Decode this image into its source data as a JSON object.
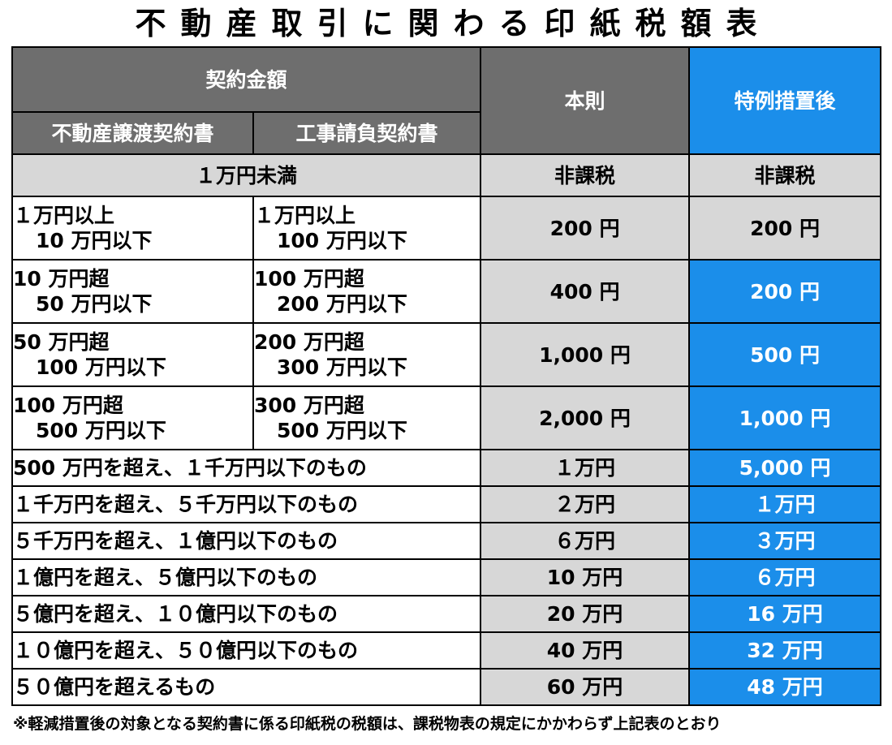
{
  "title": "不動産取引に関わる印紙税額表",
  "header": {
    "contract_amount": "契約金額",
    "real_estate_transfer": "不動産譲渡契約書",
    "construction_contract": "工事請負契約書",
    "standard": "本則",
    "after_special_measure": "特例措置後"
  },
  "rows_split": [
    {
      "doc_line1": "１万円以上",
      "doc_line2": "10 万円以下",
      "con_line1": "１万円以上",
      "con_line2": "100 万円以下",
      "standard": "200 円",
      "special": "200 円",
      "special_highlight": false
    },
    {
      "doc_line1": "10 万円超",
      "doc_line2": "50 万円以下",
      "con_line1": "100 万円超",
      "con_line2": "200 万円以下",
      "standard": "400 円",
      "special": "200 円",
      "special_highlight": true
    },
    {
      "doc_line1": "50 万円超",
      "doc_line2": "100 万円以下",
      "con_line1": "200 万円超",
      "con_line2": "300 万円以下",
      "standard": "1,000 円",
      "special": "500 円",
      "special_highlight": true
    },
    {
      "doc_line1": "100 万円超",
      "doc_line2": "500 万円以下",
      "con_line1": "300 万円超",
      "con_line2": "500 万円以下",
      "standard": "2,000 円",
      "special": "1,000 円",
      "special_highlight": true
    }
  ],
  "row_under_10k": {
    "label": "１万円未満",
    "standard": "非課税",
    "special": "非課税"
  },
  "rows_wide": [
    {
      "label": "500 万円を超え、１千万円以下のもの",
      "standard": "１万円",
      "special": "5,000 円"
    },
    {
      "label": "１千万円を超え、５千万円以下のもの",
      "standard": "２万円",
      "special": "１万円"
    },
    {
      "label": "５千万円を超え、１億円以下のもの",
      "standard": "６万円",
      "special": "３万円"
    },
    {
      "label": "１億円を超え、５億円以下のもの",
      "standard": "10 万円",
      "special": "６万円"
    },
    {
      "label": "５億円を超え、１０億円以下のもの",
      "standard": "20 万円",
      "special": "16 万円"
    },
    {
      "label": "１０億円を超え、５０億円以下のもの",
      "standard": "40 万円",
      "special": "32 万円"
    },
    {
      "label": "５０億円を超えるもの",
      "standard": "60 万円",
      "special": "48 万円"
    }
  ],
  "footnote": "※軽減措置後の対象となる契約書に係る印紙税の税額は、課税物表の規定にかかわらず上記表のとおり",
  "colors": {
    "header_dark": "#6e6e6e",
    "accent_blue": "#1b8eea",
    "cell_gray": "#d7d7d7"
  }
}
